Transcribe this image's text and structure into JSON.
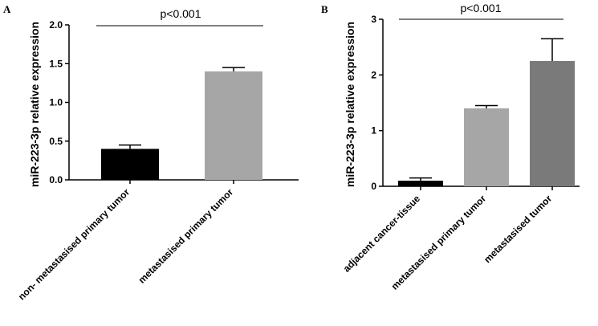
{
  "chart_data": [
    {
      "type": "bar",
      "panel_label": "A",
      "categories": [
        "non- metastasised primary tumor",
        "metastasised primary tumor"
      ],
      "values": [
        0.4,
        1.4
      ],
      "error": [
        0.05,
        0.05
      ],
      "colors": [
        "#000000",
        "#a6a6a6"
      ],
      "ylabel": "miR-223-3p relative expression",
      "ylim": [
        0,
        2.0
      ],
      "yticks": [
        "0.0",
        "0.5",
        "1.0",
        "1.5",
        "2.0"
      ],
      "significance": "p<0.001",
      "grid": false
    },
    {
      "type": "bar",
      "panel_label": "B",
      "categories": [
        "adjacent cancer-tissue",
        "metastasised primary tumor",
        "metastasised tumor"
      ],
      "values": [
        0.1,
        1.4,
        2.25
      ],
      "error": [
        0.05,
        0.05,
        0.4
      ],
      "colors": [
        "#000000",
        "#a6a6a6",
        "#7a7a7a"
      ],
      "ylabel": "miR-223-3p relative expression",
      "ylim": [
        0,
        3
      ],
      "yticks": [
        "0",
        "1",
        "2",
        "3"
      ],
      "significance": "p<0.001",
      "grid": false
    }
  ]
}
